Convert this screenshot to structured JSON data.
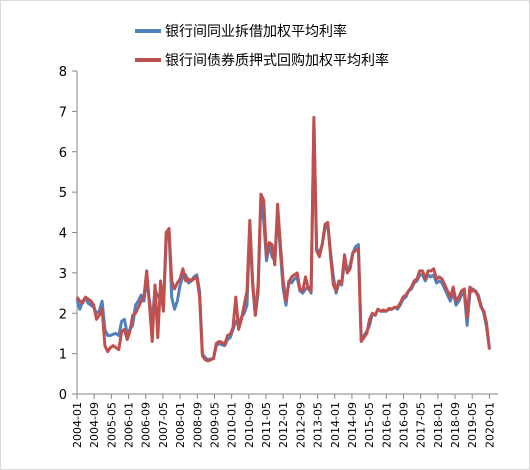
{
  "chart_data": {
    "type": "line",
    "title": "",
    "xlabel": "",
    "ylabel": "",
    "ylim": [
      0,
      8
    ],
    "yticks": [
      0,
      1,
      2,
      3,
      4,
      5,
      6,
      7,
      8
    ],
    "x_tick_labels": [
      "2004-01",
      "2004-09",
      "2005-05",
      "2006-01",
      "2006-09",
      "2007-05",
      "2008-01",
      "2008-09",
      "2009-05",
      "2010-01",
      "2010-09",
      "2011-05",
      "2012-01",
      "2012-09",
      "2013-05",
      "2014-01",
      "2014-09",
      "2015-05",
      "2016-01",
      "2016-09",
      "2017-05",
      "2018-01",
      "2018-09",
      "2019-05",
      "2020-01"
    ],
    "grid": false,
    "legend_position": "top",
    "series": [
      {
        "name": "银行间同业拆借加权平均利率",
        "color": "#4f81bd",
        "values": [
          2.35,
          2.1,
          2.3,
          2.38,
          2.25,
          2.2,
          2.15,
          2.0,
          2.05,
          2.3,
          1.6,
          1.45,
          1.45,
          1.48,
          1.5,
          1.45,
          1.8,
          1.85,
          1.5,
          1.6,
          1.7,
          2.2,
          2.3,
          2.45,
          2.3,
          2.85,
          2.3,
          1.8,
          2.6,
          2.4,
          2.5,
          2.1,
          3.8,
          4.05,
          2.4,
          2.1,
          2.3,
          2.7,
          2.9,
          2.95,
          2.75,
          2.8,
          2.9,
          2.95,
          2.55,
          1.0,
          0.9,
          0.85,
          0.87,
          0.88,
          1.2,
          1.25,
          1.22,
          1.2,
          1.35,
          1.4,
          1.6,
          1.8,
          1.7,
          1.9,
          2.0,
          2.2,
          4.15,
          2.7,
          1.95,
          2.5,
          4.85,
          4.3,
          3.3,
          3.7,
          3.4,
          3.3,
          4.5,
          3.5,
          2.6,
          2.2,
          2.8,
          2.75,
          2.85,
          2.9,
          2.55,
          2.5,
          2.6,
          2.65,
          2.5,
          6.7,
          3.6,
          3.5,
          3.7,
          4.1,
          4.2,
          3.5,
          2.9,
          2.5,
          2.75,
          2.7,
          3.3,
          3.0,
          3.2,
          3.5,
          3.65,
          3.7,
          1.35,
          1.45,
          1.55,
          1.7,
          2.0,
          1.95,
          2.1,
          2.05,
          2.05,
          2.05,
          2.1,
          2.1,
          2.15,
          2.1,
          2.2,
          2.35,
          2.4,
          2.55,
          2.6,
          2.75,
          2.8,
          2.95,
          2.95,
          2.8,
          2.95,
          2.9,
          2.95,
          2.75,
          2.8,
          2.75,
          2.6,
          2.45,
          2.3,
          2.55,
          2.2,
          2.3,
          2.45,
          2.5,
          1.7,
          2.5,
          2.6,
          2.55,
          2.45,
          2.2,
          2.0,
          1.65,
          1.15
        ]
      },
      {
        "name": "银行间债券质押式回购加权平均利率",
        "color": "#c0504d",
        "values": [
          2.4,
          2.3,
          2.25,
          2.4,
          2.35,
          2.3,
          2.2,
          1.85,
          1.95,
          2.1,
          1.2,
          1.05,
          1.15,
          1.2,
          1.15,
          1.1,
          1.55,
          1.6,
          1.35,
          1.55,
          1.95,
          2.0,
          2.15,
          2.3,
          2.4,
          3.05,
          2.2,
          1.3,
          2.7,
          1.4,
          2.8,
          2.05,
          4.0,
          4.1,
          2.8,
          2.6,
          2.75,
          2.85,
          3.1,
          2.8,
          2.85,
          2.8,
          2.85,
          2.9,
          2.4,
          0.95,
          0.85,
          0.82,
          0.85,
          0.88,
          1.25,
          1.3,
          1.28,
          1.22,
          1.45,
          1.48,
          1.65,
          2.4,
          1.6,
          1.85,
          2.2,
          2.55,
          4.3,
          2.8,
          1.95,
          2.7,
          4.95,
          4.8,
          3.4,
          3.75,
          3.7,
          3.2,
          4.7,
          3.7,
          2.8,
          2.3,
          2.75,
          2.9,
          2.95,
          3.0,
          2.6,
          2.55,
          2.9,
          2.6,
          2.55,
          6.85,
          3.55,
          3.4,
          3.7,
          4.2,
          4.25,
          3.4,
          2.7,
          2.55,
          2.8,
          2.75,
          3.45,
          3.0,
          3.1,
          3.5,
          3.55,
          3.6,
          1.3,
          1.4,
          1.5,
          1.85,
          2.0,
          1.95,
          2.1,
          2.05,
          2.08,
          2.05,
          2.12,
          2.1,
          2.15,
          2.15,
          2.25,
          2.4,
          2.45,
          2.55,
          2.65,
          2.8,
          2.85,
          3.05,
          3.05,
          2.85,
          3.05,
          3.05,
          3.1,
          2.85,
          2.9,
          2.85,
          2.7,
          2.55,
          2.4,
          2.65,
          2.3,
          2.4,
          2.55,
          2.6,
          1.9,
          2.65,
          2.55,
          2.55,
          2.4,
          2.15,
          2.05,
          1.75,
          1.1
        ]
      }
    ]
  }
}
